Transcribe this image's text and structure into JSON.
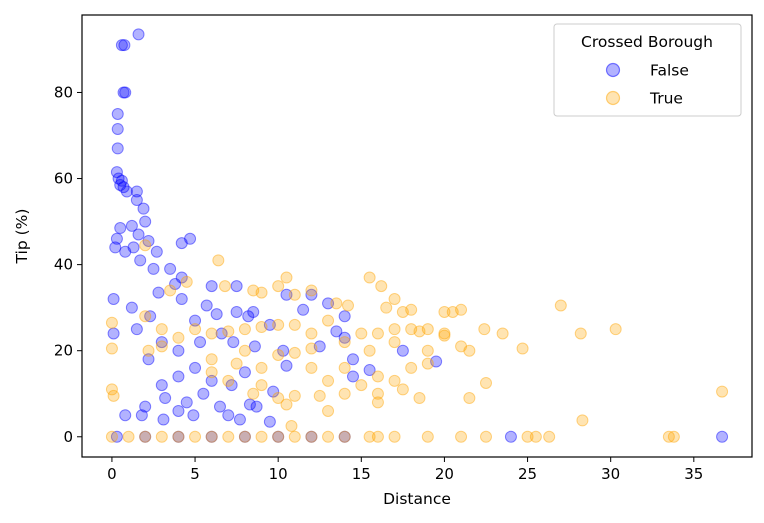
{
  "chart_data": {
    "type": "scatter",
    "title": "",
    "xlabel": "Distance",
    "ylabel": "Tip (%)",
    "xlim": [
      -1.8,
      38.5
    ],
    "ylim": [
      -4.7,
      98
    ],
    "xticks": [
      0,
      5,
      10,
      15,
      20,
      25,
      30,
      35
    ],
    "yticks": [
      0,
      20,
      40,
      60,
      80
    ],
    "legend": {
      "title": "Crossed Borough",
      "placement": "top-right"
    },
    "series": [
      {
        "name": "False",
        "color": "#0000ff",
        "points": [
          [
            1.6,
            93.5
          ],
          [
            0.6,
            91
          ],
          [
            0.75,
            91
          ],
          [
            0.7,
            80
          ],
          [
            0.8,
            80
          ],
          [
            0.35,
            75
          ],
          [
            0.35,
            71.5
          ],
          [
            0.35,
            67
          ],
          [
            0.3,
            61.5
          ],
          [
            0.4,
            60
          ],
          [
            0.6,
            59.5
          ],
          [
            0.5,
            58.5
          ],
          [
            0.7,
            58
          ],
          [
            0.9,
            57
          ],
          [
            1.5,
            57
          ],
          [
            1.5,
            55
          ],
          [
            1.9,
            53
          ],
          [
            2.0,
            50
          ],
          [
            0.5,
            48.5
          ],
          [
            1.2,
            49
          ],
          [
            1.6,
            47
          ],
          [
            0.3,
            46
          ],
          [
            2.2,
            45.5
          ],
          [
            4.2,
            45
          ],
          [
            4.7,
            46
          ],
          [
            0.2,
            44
          ],
          [
            0.8,
            43
          ],
          [
            1.3,
            44
          ],
          [
            2.7,
            43
          ],
          [
            1.7,
            41
          ],
          [
            2.5,
            39
          ],
          [
            3.5,
            39
          ],
          [
            4.2,
            37
          ],
          [
            3.8,
            35.5
          ],
          [
            6.0,
            35
          ],
          [
            7.5,
            35
          ],
          [
            2.8,
            33.5
          ],
          [
            4.2,
            32
          ],
          [
            5.7,
            30.5
          ],
          [
            0.1,
            32
          ],
          [
            1.2,
            30
          ],
          [
            6.3,
            28.5
          ],
          [
            7.5,
            29
          ],
          [
            8.5,
            29
          ],
          [
            5.0,
            27
          ],
          [
            2.3,
            28
          ],
          [
            1.5,
            25
          ],
          [
            3.0,
            22
          ],
          [
            0.1,
            24
          ],
          [
            8.2,
            28
          ],
          [
            10.5,
            33
          ],
          [
            12.0,
            33
          ],
          [
            13.0,
            31
          ],
          [
            11.5,
            29.5
          ],
          [
            9.5,
            26
          ],
          [
            14.0,
            28
          ],
          [
            13.5,
            24.5
          ],
          [
            6.6,
            24
          ],
          [
            5.3,
            22
          ],
          [
            4.0,
            20
          ],
          [
            2.2,
            18
          ],
          [
            7.3,
            22
          ],
          [
            8.6,
            21
          ],
          [
            10.3,
            20
          ],
          [
            12.5,
            21
          ],
          [
            14.0,
            23
          ],
          [
            14.5,
            18
          ],
          [
            15.5,
            15.5
          ],
          [
            19.5,
            17.5
          ],
          [
            17.5,
            20
          ],
          [
            10.5,
            16.5
          ],
          [
            14.5,
            14
          ],
          [
            8.0,
            15
          ],
          [
            5.0,
            16
          ],
          [
            4.0,
            14
          ],
          [
            6.0,
            13
          ],
          [
            3.0,
            12
          ],
          [
            7.2,
            12
          ],
          [
            9.7,
            10.5
          ],
          [
            5.5,
            10
          ],
          [
            3.2,
            9
          ],
          [
            4.5,
            8
          ],
          [
            8.3,
            7.5
          ],
          [
            6.5,
            7
          ],
          [
            2.0,
            7
          ],
          [
            4.0,
            6
          ],
          [
            7.0,
            5
          ],
          [
            4.9,
            5
          ],
          [
            1.8,
            5
          ],
          [
            0.8,
            5
          ],
          [
            3.1,
            4
          ],
          [
            7.7,
            4
          ],
          [
            9.5,
            3.5
          ],
          [
            8.7,
            7.0
          ],
          [
            0.3,
            0
          ],
          [
            2.0,
            0
          ],
          [
            4.0,
            0
          ],
          [
            6.0,
            0
          ],
          [
            8.0,
            0
          ],
          [
            10.0,
            0
          ],
          [
            12.0,
            0
          ],
          [
            14.0,
            0
          ],
          [
            24.0,
            0
          ],
          [
            36.7,
            0
          ]
        ]
      },
      {
        "name": "True",
        "color": "#ffa500",
        "points": [
          [
            0.0,
            20.5
          ],
          [
            0.0,
            26.5
          ],
          [
            0.0,
            11
          ],
          [
            0.1,
            9.5
          ],
          [
            0.0,
            0
          ],
          [
            2.0,
            44.5
          ],
          [
            6.4,
            41
          ],
          [
            6.8,
            35
          ],
          [
            4.5,
            36
          ],
          [
            3.5,
            34
          ],
          [
            8.5,
            34
          ],
          [
            9.0,
            33.5
          ],
          [
            10.0,
            35
          ],
          [
            10.5,
            37
          ],
          [
            11.0,
            33
          ],
          [
            12.0,
            34
          ],
          [
            15.5,
            37
          ],
          [
            16.2,
            35
          ],
          [
            13.5,
            31
          ],
          [
            14.2,
            30.5
          ],
          [
            16.5,
            30
          ],
          [
            17.0,
            32
          ],
          [
            17.5,
            29
          ],
          [
            18.0,
            29.5
          ],
          [
            20.0,
            29
          ],
          [
            20.5,
            29
          ],
          [
            21.0,
            29.5
          ],
          [
            23.5,
            24
          ],
          [
            27.0,
            30.5
          ],
          [
            30.3,
            25
          ],
          [
            28.2,
            24
          ],
          [
            24.7,
            20.5
          ],
          [
            22.4,
            25
          ],
          [
            21.0,
            21
          ],
          [
            18.5,
            24.5
          ],
          [
            17.0,
            22
          ],
          [
            15.5,
            20
          ],
          [
            19.0,
            20
          ],
          [
            20.0,
            23.5
          ],
          [
            21.5,
            20
          ],
          [
            19.0,
            17
          ],
          [
            18.0,
            16
          ],
          [
            16.0,
            14
          ],
          [
            17.0,
            13
          ],
          [
            14.0,
            16
          ],
          [
            12.0,
            16
          ],
          [
            13.0,
            13
          ],
          [
            14.0,
            10
          ],
          [
            15.0,
            12
          ],
          [
            16.0,
            10
          ],
          [
            17.5,
            11
          ],
          [
            12.5,
            9.5
          ],
          [
            10.0,
            9
          ],
          [
            8.5,
            10
          ],
          [
            11.0,
            9.5
          ],
          [
            13.0,
            6
          ],
          [
            10.5,
            7.5
          ],
          [
            9.0,
            12
          ],
          [
            7.0,
            13
          ],
          [
            6.0,
            15
          ],
          [
            10.0,
            19
          ],
          [
            11.0,
            19.5
          ],
          [
            12.0,
            20.5
          ],
          [
            8.0,
            20
          ],
          [
            9.0,
            16
          ],
          [
            7.5,
            17
          ],
          [
            6.0,
            18
          ],
          [
            4.0,
            23
          ],
          [
            3.0,
            25
          ],
          [
            2.0,
            28
          ],
          [
            5.0,
            25
          ],
          [
            6.0,
            24
          ],
          [
            7.0,
            24.5
          ],
          [
            8.0,
            25
          ],
          [
            9.0,
            25.5
          ],
          [
            10.0,
            26
          ],
          [
            11.0,
            26
          ],
          [
            12.0,
            24
          ],
          [
            13.0,
            27
          ],
          [
            14.0,
            22
          ],
          [
            15.0,
            24
          ],
          [
            16.0,
            24
          ],
          [
            17.0,
            25
          ],
          [
            18.0,
            25
          ],
          [
            19.0,
            25
          ],
          [
            20.0,
            24
          ],
          [
            21.5,
            9
          ],
          [
            18.5,
            9
          ],
          [
            16.0,
            8
          ],
          [
            22.5,
            12.5
          ],
          [
            36.7,
            10.5
          ],
          [
            28.3,
            3.8
          ],
          [
            33.5,
            0
          ],
          [
            33.8,
            0
          ],
          [
            26.3,
            0
          ],
          [
            25.5,
            0
          ],
          [
            25.0,
            0
          ],
          [
            22.5,
            0
          ],
          [
            21.0,
            0
          ],
          [
            19.0,
            0
          ],
          [
            17.0,
            0
          ],
          [
            16.0,
            0
          ],
          [
            15.5,
            0
          ],
          [
            14.0,
            0
          ],
          [
            13.0,
            0
          ],
          [
            12.0,
            0
          ],
          [
            11.0,
            0
          ],
          [
            10.0,
            0
          ],
          [
            9.0,
            0
          ],
          [
            8.0,
            0
          ],
          [
            7.0,
            0
          ],
          [
            6.0,
            0
          ],
          [
            5.0,
            0
          ],
          [
            4.0,
            0
          ],
          [
            3.0,
            0
          ],
          [
            2.0,
            0
          ],
          [
            1.0,
            0
          ],
          [
            10.8,
            2.5
          ],
          [
            2.2,
            20
          ],
          [
            3.0,
            21
          ]
        ]
      }
    ]
  }
}
